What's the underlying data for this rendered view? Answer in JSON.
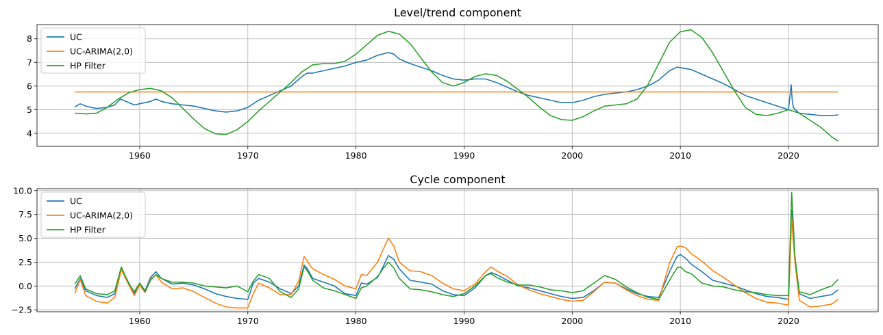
{
  "chart_data": [
    {
      "type": "line",
      "title": "Level/trend component",
      "xlabel": "",
      "ylabel": "",
      "xlim": [
        1950.5,
        2028.3
      ],
      "ylim": [
        3.45,
        8.6
      ],
      "xticks": [
        1960,
        1970,
        1980,
        1990,
        2000,
        2010,
        2020
      ],
      "yticks": [
        4,
        5,
        6,
        7,
        8
      ],
      "grid": true,
      "legend": "top-left",
      "series": [
        {
          "name": "UC",
          "color": "#1f77b4",
          "x": [
            1954,
            1954.5,
            1955,
            1956,
            1957,
            1957.7,
            1958.2,
            1959,
            1959.5,
            1960,
            1961,
            1961.5,
            1962,
            1963,
            1964,
            1965,
            1966,
            1967,
            1968,
            1969,
            1970,
            1971,
            1972,
            1973,
            1974,
            1975,
            1975.5,
            1976,
            1977,
            1978,
            1979,
            1980,
            1981,
            1982,
            1983,
            1983.5,
            1984,
            1985,
            1986,
            1987,
            1988,
            1989,
            1990,
            1991,
            1992,
            1993,
            1994,
            1995,
            1996,
            1997,
            1998,
            1999,
            2000,
            2001,
            2002,
            2003,
            2004,
            2005,
            2006,
            2007,
            2008,
            2009,
            2009.7,
            2010,
            2011,
            2012,
            2013,
            2014,
            2015,
            2016,
            2017,
            2018,
            2019,
            2020,
            2020.25,
            2020.35,
            2020.45,
            2020.6,
            2021,
            2022,
            2023,
            2024,
            2024.6
          ],
          "y": [
            5.12,
            5.25,
            5.15,
            5.05,
            5.1,
            5.2,
            5.45,
            5.3,
            5.2,
            5.25,
            5.35,
            5.45,
            5.35,
            5.25,
            5.2,
            5.15,
            5.05,
            4.95,
            4.9,
            4.95,
            5.1,
            5.4,
            5.6,
            5.8,
            6.0,
            6.4,
            6.55,
            6.55,
            6.65,
            6.75,
            6.85,
            7.0,
            7.1,
            7.3,
            7.42,
            7.35,
            7.15,
            6.95,
            6.8,
            6.65,
            6.45,
            6.3,
            6.25,
            6.3,
            6.3,
            6.15,
            5.95,
            5.75,
            5.6,
            5.5,
            5.4,
            5.3,
            5.3,
            5.4,
            5.55,
            5.65,
            5.7,
            5.75,
            5.85,
            6.0,
            6.25,
            6.65,
            6.8,
            6.78,
            6.7,
            6.5,
            6.3,
            6.1,
            5.85,
            5.6,
            5.45,
            5.3,
            5.15,
            5.0,
            6.05,
            5.4,
            5.1,
            5.0,
            4.85,
            4.8,
            4.75,
            4.75,
            4.78
          ]
        },
        {
          "name": "UC-ARIMA(2,0)",
          "color": "#ff7f0e",
          "x": [
            1954,
            2024.6
          ],
          "y": [
            5.75,
            5.75
          ]
        },
        {
          "name": "HP Filter",
          "color": "#2ca02c",
          "x": [
            1954,
            1955,
            1956,
            1957,
            1958,
            1959,
            1960,
            1961,
            1962,
            1963,
            1964,
            1965,
            1966,
            1967,
            1968,
            1969,
            1970,
            1971,
            1972,
            1973,
            1974,
            1975,
            1976,
            1977,
            1978,
            1979,
            1980,
            1981,
            1982,
            1983,
            1984,
            1985,
            1986,
            1987,
            1988,
            1989,
            1990,
            1991,
            1992,
            1993,
            1994,
            1995,
            1996,
            1997,
            1998,
            1999,
            2000,
            2001,
            2002,
            2003,
            2004,
            2005,
            2006,
            2007,
            2008,
            2009,
            2010,
            2011,
            2012,
            2013,
            2014,
            2015,
            2016,
            2017,
            2018,
            2019,
            2020,
            2021,
            2022,
            2023,
            2024,
            2024.6
          ],
          "y": [
            4.85,
            4.82,
            4.85,
            5.1,
            5.45,
            5.72,
            5.85,
            5.9,
            5.8,
            5.5,
            5.05,
            4.6,
            4.2,
            3.98,
            3.95,
            4.15,
            4.5,
            4.95,
            5.35,
            5.75,
            6.15,
            6.6,
            6.9,
            6.95,
            6.95,
            7.05,
            7.35,
            7.75,
            8.15,
            8.32,
            8.2,
            7.8,
            7.2,
            6.6,
            6.15,
            6.0,
            6.15,
            6.4,
            6.52,
            6.45,
            6.2,
            5.85,
            5.5,
            5.1,
            4.75,
            4.58,
            4.55,
            4.7,
            4.95,
            5.15,
            5.2,
            5.25,
            5.45,
            6.05,
            6.95,
            7.85,
            8.3,
            8.38,
            8.05,
            7.4,
            6.6,
            5.8,
            5.1,
            4.8,
            4.75,
            4.85,
            5.0,
            4.85,
            4.55,
            4.25,
            3.85,
            3.67
          ]
        }
      ]
    },
    {
      "type": "line",
      "title": "Cycle component",
      "xlabel": "",
      "ylabel": "",
      "xlim": [
        1950.5,
        2028.3
      ],
      "ylim": [
        -2.7,
        10.2
      ],
      "xticks": [
        1960,
        1970,
        1980,
        1990,
        2000,
        2010,
        2020
      ],
      "yticks": [
        -2.5,
        0.0,
        2.5,
        5.0,
        7.5,
        10.0
      ],
      "ytick_labels": [
        "−2.5",
        "0.0",
        "2.5",
        "5.0",
        "7.5",
        "10.0"
      ],
      "grid": true,
      "legend": "top-left",
      "series": [
        {
          "name": "UC",
          "color": "#1f77b4",
          "x": [
            1954,
            1954.5,
            1955,
            1956,
            1957,
            1957.7,
            1958.3,
            1959,
            1959.5,
            1960,
            1960.5,
            1961,
            1961.5,
            1962,
            1963,
            1964,
            1965,
            1966,
            1967,
            1968,
            1969,
            1970,
            1970.5,
            1971,
            1972,
            1973,
            1974,
            1974.7,
            1975.2,
            1975.5,
            1976,
            1977,
            1978,
            1979,
            1980,
            1980.5,
            1981,
            1982,
            1982.5,
            1983,
            1983.5,
            1984,
            1985,
            1986,
            1987,
            1988,
            1989,
            1990,
            1991,
            1992,
            1992.5,
            1993,
            1994,
            1995,
            1996,
            1997,
            1998,
            1999,
            2000,
            2001,
            2002,
            2003,
            2004,
            2005,
            2006,
            2007,
            2008,
            2009,
            2009.7,
            2010,
            2010.5,
            2011,
            2012,
            2013,
            2014,
            2015,
            2016,
            2017,
            2018,
            2019,
            2020,
            2020.3,
            2020.45,
            2020.6,
            2021,
            2022,
            2023,
            2024,
            2024.6
          ],
          "y": [
            -0.3,
            0.8,
            -0.5,
            -1.0,
            -1.2,
            -0.8,
            1.8,
            0.3,
            -0.8,
            0.3,
            -0.5,
            0.9,
            1.5,
            0.8,
            0.2,
            0.3,
            0.1,
            -0.3,
            -0.8,
            -1.1,
            -1.3,
            -1.4,
            0.3,
            0.8,
            0.4,
            -0.3,
            -0.8,
            0.0,
            2.2,
            1.8,
            0.8,
            0.4,
            0.0,
            -0.8,
            -1.0,
            0.3,
            0.2,
            0.9,
            2.0,
            3.2,
            2.8,
            1.8,
            0.6,
            0.4,
            0.2,
            -0.5,
            -0.9,
            -1.0,
            -0.2,
            1.1,
            1.4,
            1.2,
            0.6,
            0.0,
            -0.2,
            -0.5,
            -0.8,
            -1.1,
            -1.3,
            -1.2,
            -0.5,
            0.4,
            0.3,
            -0.3,
            -0.8,
            -1.1,
            -1.2,
            1.5,
            3.1,
            3.3,
            2.9,
            2.3,
            1.5,
            0.6,
            0.3,
            0.0,
            -0.4,
            -0.8,
            -1.1,
            -1.2,
            -1.4,
            8.0,
            4.8,
            3.0,
            -0.8,
            -1.3,
            -1.1,
            -0.9,
            -0.4
          ]
        },
        {
          "name": "UC-ARIMA(2,0)",
          "color": "#ff7f0e",
          "x": [
            1954,
            1954.5,
            1955,
            1956,
            1957,
            1957.7,
            1958.3,
            1959,
            1959.5,
            1960,
            1960.5,
            1961,
            1961.5,
            1962,
            1963,
            1964,
            1965,
            1966,
            1967,
            1968,
            1969,
            1970,
            1970.5,
            1971,
            1972,
            1973,
            1974,
            1974.7,
            1975.2,
            1975.5,
            1976,
            1977,
            1978,
            1979,
            1980,
            1980.5,
            1981,
            1982,
            1982.5,
            1983,
            1983.5,
            1984,
            1985,
            1986,
            1987,
            1988,
            1989,
            1990,
            1991,
            1992,
            1992.5,
            1993,
            1994,
            1995,
            1996,
            1997,
            1998,
            1999,
            2000,
            2001,
            2002,
            2003,
            2004,
            2005,
            2006,
            2007,
            2008,
            2009,
            2009.7,
            2010,
            2010.5,
            2011,
            2012,
            2013,
            2014,
            2015,
            2016,
            2017,
            2018,
            2019,
            2020,
            2020.3,
            2020.45,
            2020.6,
            2021,
            2022,
            2023,
            2024,
            2024.6
          ],
          "y": [
            -0.8,
            0.7,
            -1.0,
            -1.6,
            -1.8,
            -1.2,
            1.7,
            0.1,
            -1.0,
            0.1,
            -0.7,
            0.7,
            1.2,
            0.4,
            -0.3,
            -0.2,
            -0.6,
            -1.2,
            -1.8,
            -2.2,
            -2.3,
            -2.3,
            -0.8,
            0.3,
            -0.2,
            -0.9,
            -0.9,
            0.5,
            3.1,
            2.6,
            1.8,
            1.2,
            0.7,
            0.0,
            -0.3,
            1.2,
            1.1,
            2.5,
            3.8,
            5.0,
            4.2,
            2.5,
            1.6,
            1.5,
            1.1,
            0.3,
            -0.3,
            -0.5,
            0.2,
            1.5,
            2.0,
            1.6,
            1.0,
            0.1,
            -0.4,
            -0.8,
            -1.1,
            -1.4,
            -1.6,
            -1.5,
            -0.6,
            0.4,
            0.3,
            -0.4,
            -1.0,
            -1.4,
            -1.5,
            2.4,
            4.1,
            4.2,
            4.0,
            3.4,
            2.6,
            1.6,
            0.9,
            0.1,
            -0.7,
            -1.3,
            -1.7,
            -1.8,
            -2.0,
            7.2,
            4.6,
            2.5,
            -1.5,
            -2.2,
            -2.1,
            -1.9,
            -1.4
          ]
        },
        {
          "name": "HP Filter",
          "color": "#2ca02c",
          "x": [
            1954,
            1954.5,
            1955,
            1956,
            1957,
            1957.7,
            1958.3,
            1959,
            1959.5,
            1960,
            1960.5,
            1961,
            1961.5,
            1962,
            1963,
            1964,
            1965,
            1966,
            1967,
            1968,
            1969,
            1970,
            1970.5,
            1971,
            1972,
            1973,
            1974,
            1974.7,
            1975.2,
            1975.5,
            1976,
            1977,
            1978,
            1979,
            1980,
            1980.5,
            1981,
            1982,
            1982.5,
            1983,
            1983.5,
            1984,
            1985,
            1986,
            1987,
            1988,
            1989,
            1990,
            1991,
            1992,
            1992.5,
            1993,
            1994,
            1995,
            1996,
            1997,
            1998,
            1999,
            2000,
            2001,
            2002,
            2003,
            2004,
            2005,
            2006,
            2007,
            2008,
            2009,
            2009.7,
            2010,
            2010.5,
            2011,
            2012,
            2013,
            2014,
            2015,
            2016,
            2017,
            2018,
            2019,
            2020,
            2020.3,
            2020.45,
            2020.6,
            2021,
            2022,
            2023,
            2024,
            2024.6
          ],
          "y": [
            0.2,
            1.1,
            -0.3,
            -0.8,
            -0.9,
            -0.5,
            2.0,
            0.2,
            -0.6,
            0.3,
            -0.6,
            0.6,
            1.2,
            0.8,
            0.4,
            0.4,
            0.3,
            0.0,
            -0.1,
            -0.2,
            0.0,
            -0.6,
            0.5,
            1.2,
            0.8,
            -0.6,
            -1.2,
            -0.3,
            2.0,
            1.6,
            0.6,
            -0.2,
            -0.5,
            -0.9,
            -1.3,
            -0.2,
            0.0,
            1.0,
            1.8,
            2.5,
            1.9,
            0.8,
            -0.3,
            -0.4,
            -0.6,
            -0.9,
            -1.1,
            -0.8,
            0.0,
            1.1,
            1.3,
            0.9,
            0.4,
            0.1,
            0.1,
            -0.1,
            -0.4,
            -0.5,
            -0.7,
            -0.5,
            0.3,
            1.1,
            0.7,
            -0.1,
            -0.7,
            -1.2,
            -1.4,
            0.6,
            1.9,
            2.0,
            1.5,
            1.3,
            0.3,
            0.0,
            -0.1,
            -0.4,
            -0.6,
            -0.7,
            -0.9,
            -1.0,
            -1.0,
            9.8,
            6.4,
            3.0,
            -0.6,
            -0.9,
            -0.4,
            0.0,
            0.7
          ]
        }
      ]
    }
  ]
}
